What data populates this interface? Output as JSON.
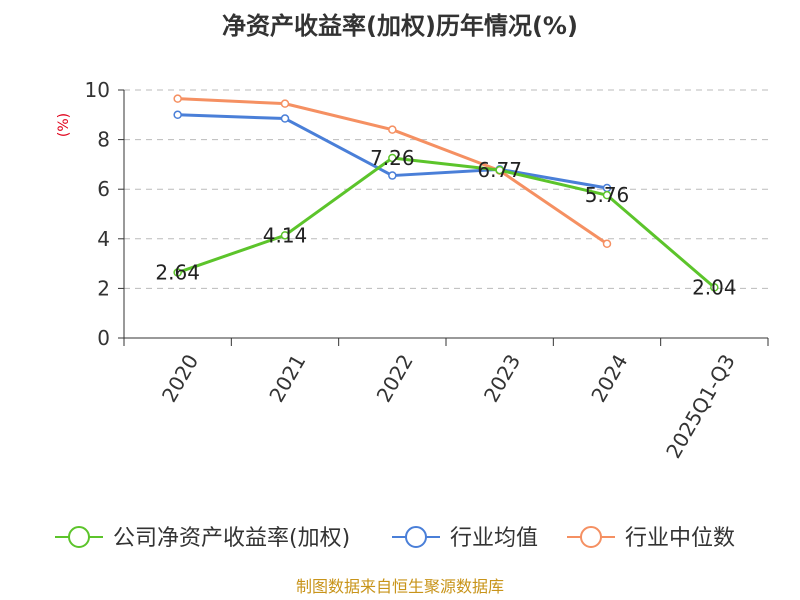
{
  "chart_data": {
    "type": "line",
    "title": "净资产收益率(加权)历年情况(%)",
    "ylabel": "(%)",
    "xlabel": "",
    "ylim": [
      0,
      10
    ],
    "yticks": [
      0,
      2,
      4,
      6,
      8,
      10
    ],
    "categories": [
      "2020",
      "2021",
      "2022",
      "2023",
      "2024",
      "2025Q1-Q3"
    ],
    "grid": true,
    "legend_position": "bottom",
    "series": [
      {
        "name": "公司净资产收益率(加权)",
        "color": "#5cc42b",
        "values": [
          2.64,
          4.14,
          7.26,
          6.77,
          5.76,
          2.04
        ],
        "labels": [
          "2.64",
          "4.14",
          "7.26",
          "6.77",
          "5.76",
          "2.04"
        ]
      },
      {
        "name": "行业均值",
        "color": "#4a7fd8",
        "values": [
          9.0,
          8.85,
          6.55,
          6.8,
          6.05,
          null
        ]
      },
      {
        "name": "行业中位数",
        "color": "#f59062",
        "values": [
          9.65,
          9.45,
          8.4,
          6.75,
          3.8,
          null
        ]
      }
    ]
  },
  "source": "制图数据来自恒生聚源数据库"
}
